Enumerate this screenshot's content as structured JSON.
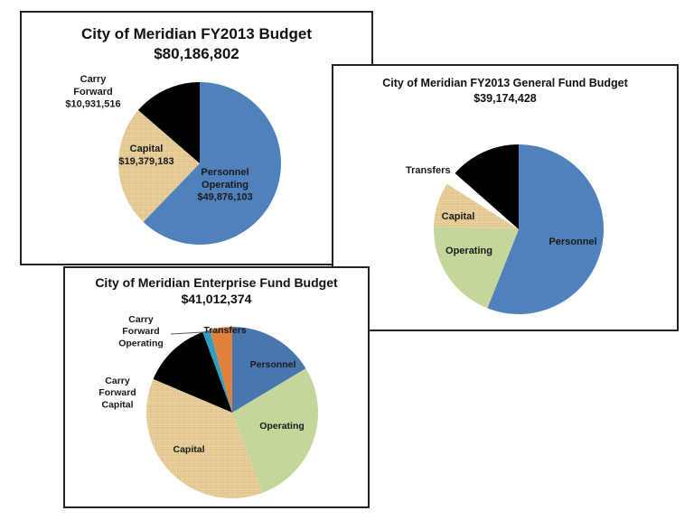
{
  "chart_data": [
    {
      "type": "pie",
      "title": "City of  Meridian FY2013 Budget",
      "subtitle": "$80,186,802",
      "slices": [
        {
          "name": "Personnel Operating",
          "label_lines": [
            "Personnel",
            "Operating",
            "$49,876,103"
          ],
          "value": 49876103,
          "color": "#4f81bd"
        },
        {
          "name": "Capital",
          "label_lines": [
            "Capital",
            "$19,379,183"
          ],
          "value": 19379183,
          "color": "#e6cc96",
          "texture": "paper"
        },
        {
          "name": "Carry Forward",
          "label_lines": [
            "Carry",
            "Forward",
            "$10,931,516"
          ],
          "value": 10931516,
          "color": "#000000"
        }
      ]
    },
    {
      "type": "pie",
      "title": "City of Meridian FY2013 General Fund Budget",
      "subtitle": "$39,174,428",
      "slices": [
        {
          "name": "Personnel",
          "label_lines": [
            "Personnel"
          ],
          "value": 56,
          "color": "#4f81bd"
        },
        {
          "name": "Operating",
          "label_lines": [
            "Operating"
          ],
          "value": 19.5,
          "color": "#c3d69b"
        },
        {
          "name": "Capital",
          "label_lines": [
            "Capital"
          ],
          "value": 8.5,
          "color": "#e6cc96",
          "texture": "paper"
        },
        {
          "name": "",
          "label_lines": [],
          "value": 2.5,
          "color": "#ffffff"
        },
        {
          "name": "Transfers",
          "label_lines": [
            "Transfers"
          ],
          "value": 13.5,
          "color": "#000000"
        }
      ]
    },
    {
      "type": "pie",
      "title": "City of Meridian Enterprise Fund Budget",
      "subtitle": "$41,012,374",
      "slices": [
        {
          "name": "Personnel",
          "label_lines": [
            "Personnel"
          ],
          "value": 16.4,
          "color": "#4a76b0"
        },
        {
          "name": "Operating",
          "label_lines": [
            "Operating"
          ],
          "value": 27.8,
          "color": "#c3d69b"
        },
        {
          "name": "Capital",
          "label_lines": [
            "Capital"
          ],
          "value": 37.2,
          "color": "#e6cc96",
          "texture": "paper"
        },
        {
          "name": "Carry Forward Capital",
          "label_lines": [
            "Carry",
            "Forward",
            "Capital"
          ],
          "value": 13.0,
          "color": "#000000"
        },
        {
          "name": "Carry Forward Operating",
          "label_lines": [
            "Carry",
            "Forward",
            "Operating"
          ],
          "value": 1.4,
          "color": "#31a0c0"
        },
        {
          "name": "Transfers",
          "label_lines": [
            "Transfers"
          ],
          "value": 4.2,
          "color": "#e0823a"
        }
      ]
    }
  ]
}
